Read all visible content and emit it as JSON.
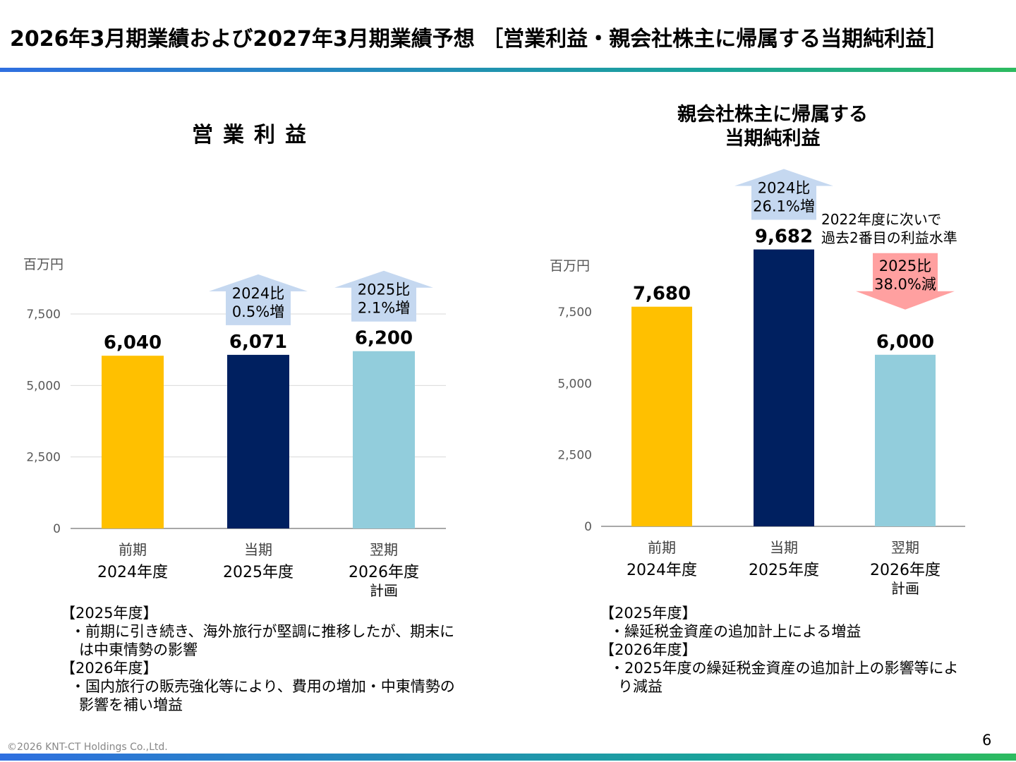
{
  "page": {
    "title": "2026年3月期業績および2027年3月期業績予想 ［営業利益・親会社株主に帰属する当期純利益］",
    "copyright": "©2026 KNT-CT Holdings Co.,Ltd.",
    "page_number": "6",
    "colors": {
      "prev": "#ffc000",
      "current": "#002060",
      "plan": "#92cddc",
      "up_arrow": "#c5d8f0",
      "down_arrow": "#ffa0a0",
      "accent_bar": "#2f6fe0"
    }
  },
  "left": {
    "title": "営業利益",
    "unit": "百万円",
    "notes": [
      {
        "heading": "【2025年度】",
        "bullets": [
          "・前期に引き続き、海外旅行が堅調に推移したが、期末には中東情勢の影響"
        ]
      },
      {
        "heading": "【2026年度】",
        "bullets": [
          "・国内旅行の販売強化等により、費用の増加・中東情勢の影響を補い増益"
        ]
      }
    ]
  },
  "right": {
    "title_line1": "親会社株主に帰属する",
    "title_line2": "当期純利益",
    "unit": "百万円",
    "side_note_line1": "2022年度に次いで",
    "side_note_line2": "過去2番目の利益水準",
    "notes": [
      {
        "heading": "【2025年度】",
        "bullets": [
          "・繰延税金資産の追加計上による増益"
        ]
      },
      {
        "heading": "【2026年度】",
        "bullets": [
          "・2025年度の繰延税金資産の追加計上の影響等により減益"
        ]
      }
    ]
  },
  "chart_data": [
    {
      "type": "bar",
      "title": "営業利益",
      "ylabel": "百万円",
      "ylim": [
        0,
        7500
      ],
      "yticks": [
        0,
        2500,
        5000,
        7500
      ],
      "ytick_labels": [
        "0",
        "2,500",
        "5,000",
        "7,500"
      ],
      "grid": true,
      "categories": [
        {
          "line1": "前期",
          "line2": "2024年度",
          "line3": ""
        },
        {
          "line1": "当期",
          "line2": "2025年度",
          "line3": ""
        },
        {
          "line1": "翌期",
          "line2": "2026年度",
          "line3": "計画"
        }
      ],
      "values": [
        6040,
        6071,
        6200
      ],
      "value_labels": [
        "6,040",
        "6,071",
        "6,200"
      ],
      "bar_colors": [
        "#ffc000",
        "#002060",
        "#92cddc"
      ],
      "annotations": [
        {
          "bar": 1,
          "direction": "up",
          "line1": "2024比",
          "line2": "0.5%増"
        },
        {
          "bar": 2,
          "direction": "up",
          "line1": "2025比",
          "line2": "2.1%増"
        }
      ]
    },
    {
      "type": "bar",
      "title": "親会社株主に帰属する当期純利益",
      "ylabel": "百万円",
      "ylim": [
        0,
        7500
      ],
      "yticks": [
        0,
        2500,
        5000,
        7500
      ],
      "ytick_labels": [
        "0",
        "2,500",
        "5,000",
        "7,500"
      ],
      "grid": false,
      "categories": [
        {
          "line1": "前期",
          "line2": "2024年度",
          "line3": ""
        },
        {
          "line1": "当期",
          "line2": "2025年度",
          "line3": ""
        },
        {
          "line1": "翌期",
          "line2": "2026年度",
          "line3": "計画"
        }
      ],
      "values": [
        7680,
        9682,
        6000
      ],
      "value_labels": [
        "7,680",
        "9,682",
        "6,000"
      ],
      "bar_colors": [
        "#ffc000",
        "#002060",
        "#92cddc"
      ],
      "annotations": [
        {
          "bar": 1,
          "direction": "up",
          "line1": "2024比",
          "line2": "26.1%増"
        },
        {
          "bar": 2,
          "direction": "down",
          "line1": "2025比",
          "line2": "38.0%減"
        }
      ]
    }
  ]
}
